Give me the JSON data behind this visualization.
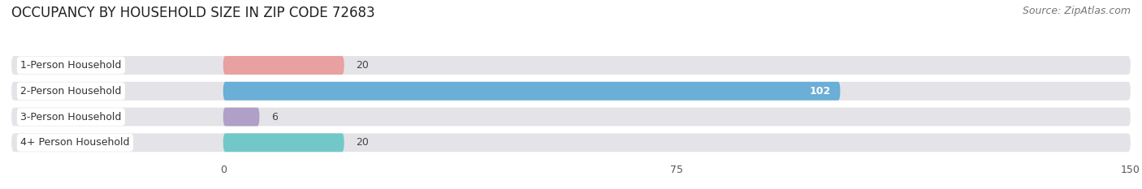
{
  "title": "OCCUPANCY BY HOUSEHOLD SIZE IN ZIP CODE 72683",
  "source": "Source: ZipAtlas.com",
  "categories": [
    "1-Person Household",
    "2-Person Household",
    "3-Person Household",
    "4+ Person Household"
  ],
  "values": [
    20,
    102,
    6,
    20
  ],
  "bar_colors": [
    "#e8a0a0",
    "#6baed6",
    "#b0a0c8",
    "#72c8c8"
  ],
  "bar_label_colors": [
    "#555555",
    "#ffffff",
    "#555555",
    "#555555"
  ],
  "xlim_data": [
    -35,
    150
  ],
  "xlim_display": [
    0,
    150
  ],
  "xticks": [
    0,
    75,
    150
  ],
  "background_color": "#f2f2f2",
  "row_bg_color": "#e4e4e8",
  "row_bg_color2": "#ebebef",
  "title_fontsize": 12,
  "source_fontsize": 9,
  "label_fontsize": 9,
  "tick_fontsize": 9,
  "value_label_fontsize": 9
}
